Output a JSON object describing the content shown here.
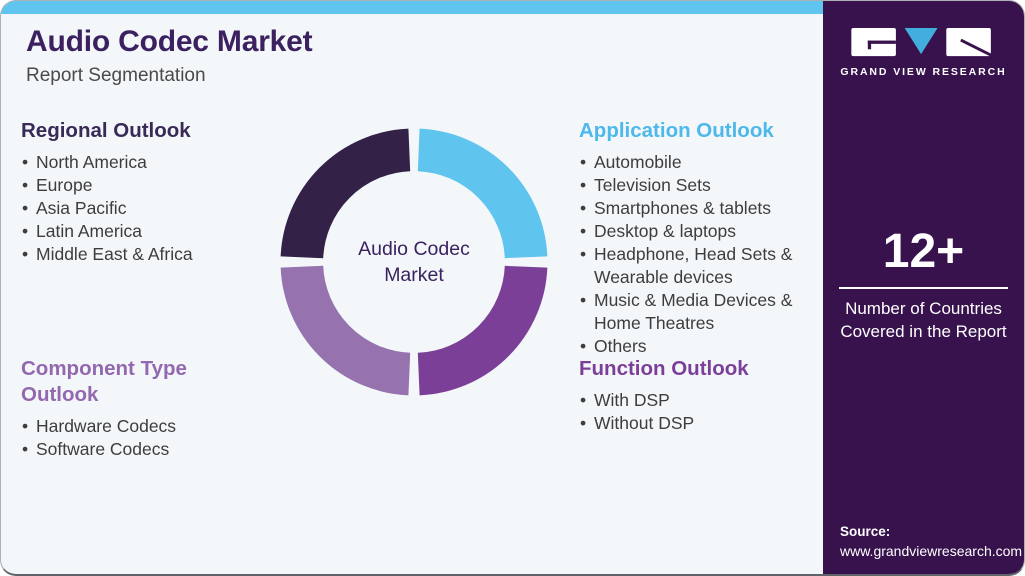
{
  "colors": {
    "page_bg": "#f3f7fa",
    "accent_strip": "#5fc4ee",
    "title": "#3b2160",
    "subtitle": "#4a4a4a",
    "body_text": "#3d3d3d",
    "regional": "#3a2a56",
    "component": "#9468af",
    "application": "#4db9ea",
    "function": "#7c3f99",
    "sidebar_bg": "#37124c",
    "logo_v": "#41aede"
  },
  "header": {
    "title": "Audio Codec Market",
    "subtitle": "Report Segmentation"
  },
  "sections": {
    "regional": {
      "heading": "Regional Outlook",
      "items": [
        "North America",
        "Europe",
        "Asia Pacific",
        "Latin America",
        "Middle East & Africa"
      ]
    },
    "component": {
      "heading": "Component Type Outlook",
      "items": [
        "Hardware Codecs",
        "Software Codecs"
      ]
    },
    "application": {
      "heading": "Application Outlook",
      "items": [
        "Automobile",
        "Television Sets",
        "Smartphones & tablets",
        "Desktop & laptops",
        "Headphone, Head Sets & Wearable devices",
        "Music & Media Devices & Home Theatres",
        "Others"
      ]
    },
    "function": {
      "heading": "Function Outlook",
      "items": [
        "With DSP",
        "Without DSP"
      ]
    }
  },
  "chart_data": {
    "type": "pie",
    "subtype": "donut",
    "title": "Audio Codec Market Report Segmentation",
    "center_label": "Audio Codec Market",
    "legend": "none",
    "segments": [
      {
        "label": "Application Outlook",
        "value": 25,
        "color": "#5fc4ee"
      },
      {
        "label": "Function Outlook",
        "value": 25,
        "color": "#7b3f98"
      },
      {
        "label": "Component Type Outlook",
        "value": 25,
        "color": "#9673ae"
      },
      {
        "label": "Regional Outlook",
        "value": 25,
        "color": "#332148"
      }
    ]
  },
  "sidebar": {
    "logo_text": "GRAND VIEW RESEARCH",
    "stat_value": "12+",
    "stat_caption": "Number of Countries Covered in the Report",
    "source_label": "Source:",
    "source_url": "www.grandviewresearch.com"
  }
}
